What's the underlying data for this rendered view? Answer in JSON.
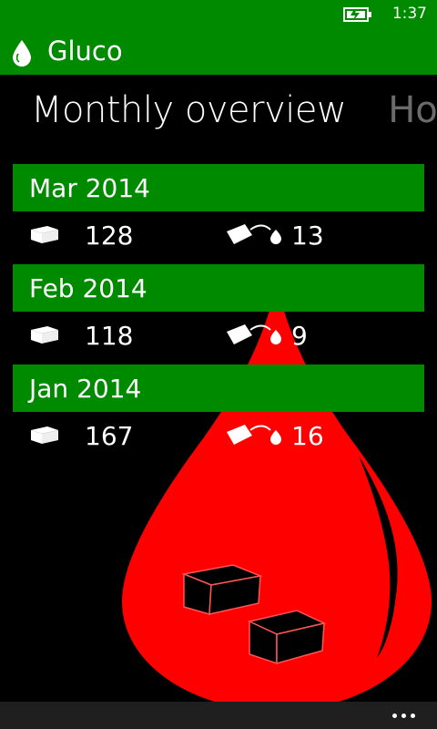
{
  "status_bar": {
    "time": "1:37",
    "battery_icon": "battery-charging-icon"
  },
  "app": {
    "title": "Gluco",
    "logo_icon": "blood-drop-icon",
    "brand_color": "#008a00",
    "accent_red": "#ff0000"
  },
  "pivot": {
    "active": "Monthly overview",
    "next": "Hon"
  },
  "months": [
    {
      "label": "Mar 2014",
      "sugar_count": "128",
      "test_count": "13"
    },
    {
      "label": "Feb 2014",
      "sugar_count": "118",
      "test_count": "9"
    },
    {
      "label": "Jan 2014",
      "sugar_count": "167",
      "test_count": "16"
    }
  ],
  "icons": {
    "sugar": "sugar-cube-icon",
    "test": "blood-test-strip-icon",
    "more": "more-dots-icon"
  }
}
